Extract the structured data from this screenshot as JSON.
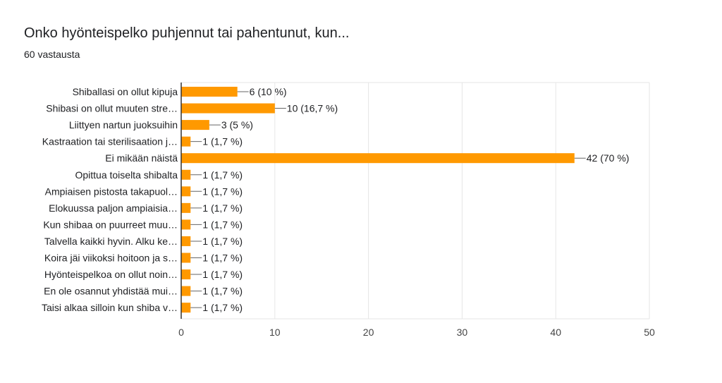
{
  "title": "Onko hyönteispelko puhjennut tai pahentunut, kun...",
  "subtitle": "60 vastausta",
  "colors": {
    "bar": "#ff9900",
    "grid": "#e6e6e6",
    "axis": "#333333",
    "text": "#202124"
  },
  "chart_data": {
    "type": "bar",
    "orientation": "horizontal",
    "categories": [
      "Shiballasi on ollut kipuja",
      "Shibasi on ollut muuten stre…",
      "Liittyen nartun juoksuihin",
      "Kastraation tai sterilisaation j…",
      "Ei mikään näistä",
      "Opittua toiselta shibalta",
      "Ampiaisen pistosta takapuol…",
      "Elokuussa paljon ampiaisia…",
      "Kun shibaa on puurreet muu…",
      "Talvella kaikki hyvin. Alku ke…",
      "Koira jäi viikoksi hoitoon ja s…",
      "Hyönteispelkoa on ollut noin…",
      "En ole osannut yhdistää mui…",
      "Taisi alkaa silloin kun shiba v…"
    ],
    "values": [
      6,
      10,
      3,
      1,
      42,
      1,
      1,
      1,
      1,
      1,
      1,
      1,
      1,
      1
    ],
    "data_labels": [
      "6 (10 %)",
      "10 (16,7 %)",
      "3 (5 %)",
      "1 (1,7 %)",
      "42 (70 %)",
      "1 (1,7 %)",
      "1 (1,7 %)",
      "1 (1,7 %)",
      "1 (1,7 %)",
      "1 (1,7 %)",
      "1 (1,7 %)",
      "1 (1,7 %)",
      "1 (1,7 %)",
      "1 (1,7 %)"
    ],
    "xlim": [
      0,
      50
    ],
    "xticks": [
      "0",
      "10",
      "20",
      "30",
      "40",
      "50"
    ],
    "grid": true
  }
}
